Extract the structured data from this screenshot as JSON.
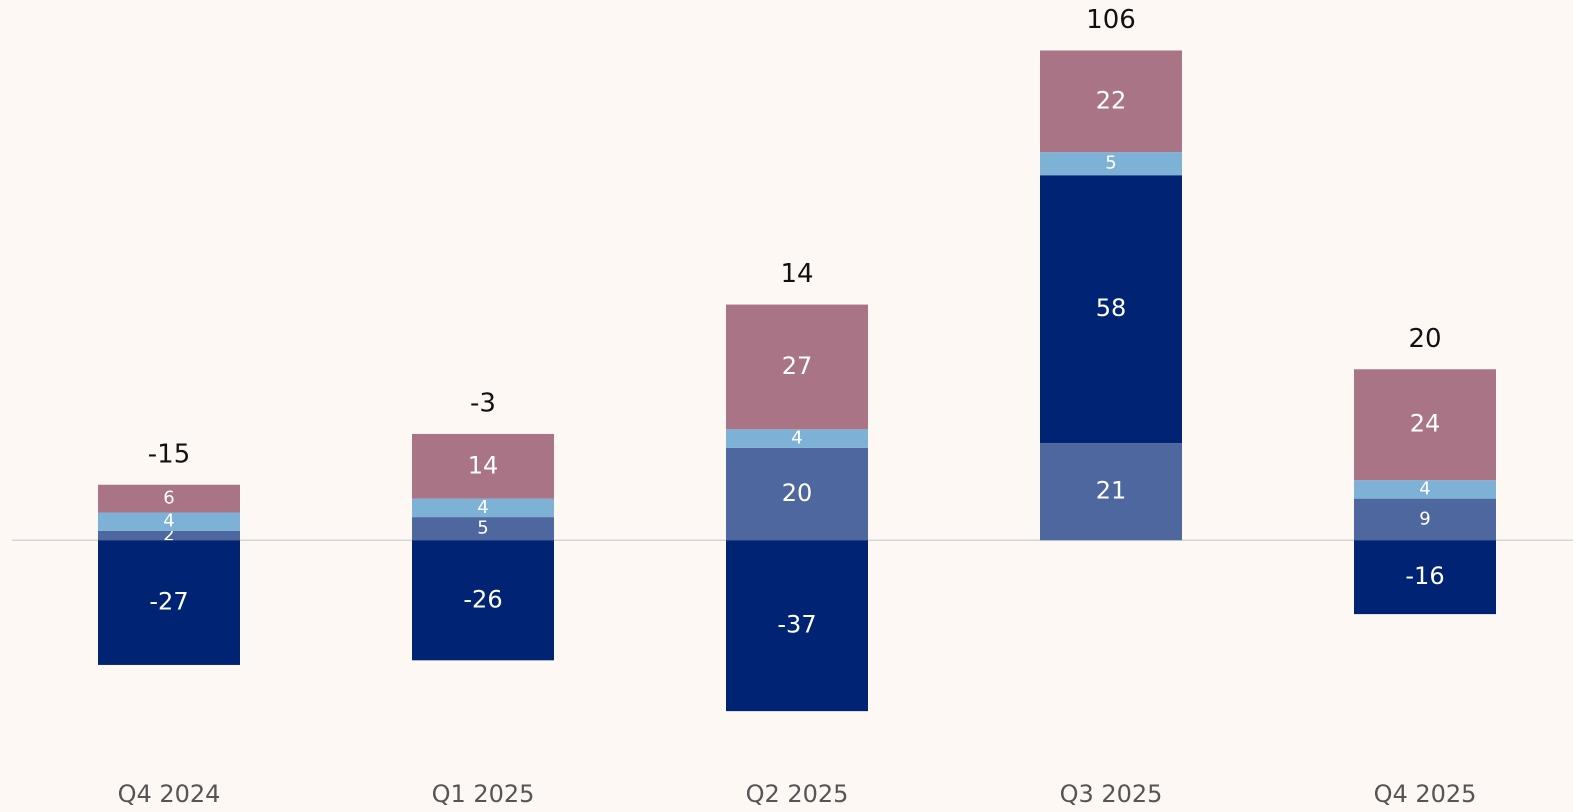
{
  "chart_data": {
    "type": "stacked-bar",
    "categories": [
      "Q4 2024",
      "Q1 2025",
      "Q2 2025",
      "Q3 2025",
      "Q4 2025"
    ],
    "series": [
      {
        "color": "#4e689f",
        "values": [
          2,
          5,
          20,
          21,
          9
        ]
      },
      {
        "color": "#002473",
        "values": [
          -27,
          -26,
          -37,
          58,
          -16
        ]
      },
      {
        "color": "#7db2d6",
        "values": [
          4,
          4,
          4,
          5,
          4
        ]
      },
      {
        "color": "#a97485",
        "values": [
          6,
          14,
          27,
          22,
          24
        ]
      }
    ],
    "totals": [
      -15,
      -3,
      14,
      106,
      20
    ],
    "ylim": [
      -40,
      110
    ]
  }
}
